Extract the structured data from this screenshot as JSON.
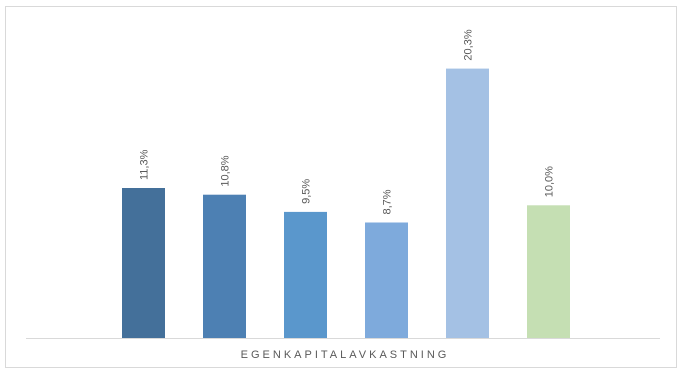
{
  "chart_data": {
    "type": "bar",
    "categories": [
      "",
      "",
      "",
      "",
      "",
      ""
    ],
    "values": [
      11.3,
      10.8,
      9.5,
      8.7,
      20.3,
      10.0
    ],
    "data_labels": [
      "11,3%",
      "10,8%",
      "9,5%",
      "8,7%",
      "20,3%",
      "10,0%"
    ],
    "colors": [
      "#44709a",
      "#4d80b3",
      "#5a97cc",
      "#7eaadc",
      "#a4c1e4",
      "#c5dfb3"
    ],
    "title": "",
    "xlabel": "EGENKAPITALAVKASTNING",
    "ylabel": "",
    "ylim": [
      0,
      22
    ],
    "grid": false,
    "legend": "none"
  }
}
